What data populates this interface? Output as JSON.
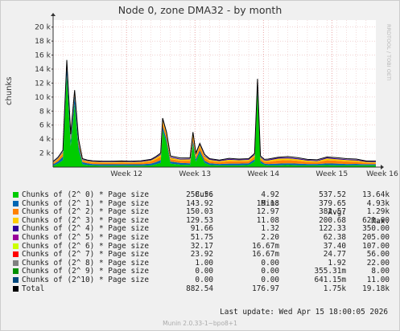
{
  "title": "Node 0, zone DMA32 - by month",
  "side_label": "RRDTOOL / TOBI OETIKER",
  "footer": "Munin 2.0.33-1~bpo8+1",
  "last_update": "Last update: Wed Apr 15 18:00:05 2026",
  "legend_headers": {
    "cur": "Cur:",
    "min": "Min:",
    "avg": "Avg:",
    "max": "Max:"
  },
  "legend": [
    {
      "name": "Chunks of (2^ 0) * Page size",
      "color": "#00cc00",
      "cur": "258.56",
      "min": "4.92",
      "avg": "537.52",
      "max": "13.64k"
    },
    {
      "name": "Chunks of (2^ 1) * Page size",
      "color": "#0066b3",
      "cur": "143.92",
      "min": "19.18",
      "avg": "379.65",
      "max": "4.93k"
    },
    {
      "name": "Chunks of (2^ 2) * Page size",
      "color": "#ff8000",
      "cur": "150.03",
      "min": "12.97",
      "avg": "382.57",
      "max": "1.29k"
    },
    {
      "name": "Chunks of (2^ 3) * Page size",
      "color": "#ffcc00",
      "cur": "129.53",
      "min": "11.08",
      "avg": "200.68",
      "max": "621.00"
    },
    {
      "name": "Chunks of (2^ 4) * Page size",
      "color": "#330099",
      "cur": "91.66",
      "min": "1.32",
      "avg": "122.33",
      "max": "350.00"
    },
    {
      "name": "Chunks of (2^ 5) * Page size",
      "color": "#990099",
      "cur": "51.75",
      "min": "2.20",
      "avg": "62.38",
      "max": "205.00"
    },
    {
      "name": "Chunks of (2^ 6) * Page size",
      "color": "#ccff00",
      "cur": "32.17",
      "min": "16.67m",
      "avg": "37.40",
      "max": "107.00"
    },
    {
      "name": "Chunks of (2^ 7) * Page size",
      "color": "#ff0000",
      "cur": "23.92",
      "min": "16.67m",
      "avg": "24.77",
      "max": "56.00"
    },
    {
      "name": "Chunks of (2^ 8) * Page size",
      "color": "#808080",
      "cur": "1.00",
      "min": "0.00",
      "avg": "1.92",
      "max": "22.00"
    },
    {
      "name": "Chunks of (2^ 9) * Page size",
      "color": "#008f00",
      "cur": "0.00",
      "min": "0.00",
      "avg": "355.31m",
      "max": "8.00"
    },
    {
      "name": "Chunks of (2^10) * Page size",
      "color": "#00487d",
      "cur": "0.00",
      "min": "0.00",
      "avg": "641.15m",
      "max": "11.00"
    },
    {
      "name": "Total",
      "color": "#000000",
      "cur": "882.54",
      "min": "176.97",
      "avg": "1.75k",
      "max": "19.18k"
    }
  ],
  "chart_data": {
    "type": "area",
    "ylabel": "chunks",
    "ylim": [
      0,
      21000
    ],
    "yticks": [
      2000,
      4000,
      6000,
      8000,
      10000,
      12000,
      14000,
      16000,
      18000,
      20000
    ],
    "ytick_labels": [
      "2 k",
      "4 k",
      "6 k",
      "8 k",
      "10 k",
      "12 k",
      "14 k",
      "16 k",
      "18 k",
      "20 k"
    ],
    "x_axis_unit": "days",
    "xlim": [
      0,
      33
    ],
    "xticks": [
      {
        "day": 7.5,
        "label": "Week 12"
      },
      {
        "day": 14.5,
        "label": "Week 13"
      },
      {
        "day": 21.5,
        "label": "Week 14"
      },
      {
        "day": 28.5,
        "label": "Week 15"
      },
      {
        "day": 35.5,
        "label": "Week 16"
      }
    ],
    "stacked": true,
    "series_colors": [
      "#00cc00",
      "#0066b3",
      "#ff8000",
      "#ffcc00",
      "#330099"
    ],
    "series": [
      {
        "name": "Chunks of (2^ 0) * Page size",
        "x": [
          0,
          0.5,
          1,
          1.4,
          1.8,
          2.2,
          2.6,
          3,
          3.5,
          4,
          5,
          6,
          7,
          8,
          9,
          10,
          10.5,
          11,
          11.2,
          11.6,
          12,
          13,
          14,
          14.3,
          14.6,
          15,
          15.5,
          16,
          17,
          18,
          19,
          20,
          20.6,
          20.9,
          21.2,
          21.6,
          22,
          23,
          24,
          25,
          26,
          27,
          28,
          29,
          30,
          31,
          32,
          33
        ],
        "values": [
          200,
          500,
          1000,
          13200,
          3000,
          9000,
          2500,
          400,
          300,
          250,
          200,
          200,
          220,
          200,
          200,
          250,
          400,
          600,
          5200,
          3500,
          500,
          350,
          300,
          3300,
          800,
          2000,
          600,
          300,
          250,
          250,
          250,
          300,
          800,
          11000,
          600,
          300,
          250,
          250,
          300,
          250,
          250,
          250,
          280,
          250,
          250,
          260,
          260,
          260
        ]
      },
      {
        "name": "Chunks of (2^ 1) * Page size",
        "x": [
          0,
          0.5,
          1,
          1.4,
          1.8,
          2.2,
          2.6,
          3,
          3.5,
          4,
          5,
          6,
          7,
          8,
          9,
          10,
          10.5,
          11,
          11.2,
          11.6,
          12,
          13,
          14,
          14.3,
          14.6,
          15,
          15.5,
          16,
          17,
          18,
          19,
          20,
          20.6,
          20.9,
          21.2,
          21.6,
          22,
          23,
          24,
          25,
          26,
          27,
          28,
          29,
          30,
          31,
          32,
          33
        ],
        "values": [
          200,
          300,
          500,
          1500,
          800,
          1200,
          700,
          300,
          250,
          200,
          200,
          200,
          200,
          200,
          200,
          250,
          300,
          400,
          600,
          500,
          300,
          250,
          250,
          500,
          350,
          400,
          300,
          250,
          200,
          250,
          250,
          250,
          300,
          600,
          300,
          200,
          200,
          250,
          250,
          250,
          200,
          200,
          250,
          250,
          200,
          200,
          150,
          150
        ]
      },
      {
        "name": "Chunks of (2^ 2) * Page size",
        "x": [
          0,
          0.5,
          1,
          1.4,
          1.8,
          2.2,
          2.6,
          3,
          3.5,
          4,
          5,
          6,
          7,
          8,
          9,
          10,
          10.5,
          11,
          11.2,
          11.6,
          12,
          13,
          14,
          14.3,
          14.6,
          15,
          15.5,
          16,
          17,
          18,
          19,
          20,
          20.6,
          20.9,
          21.2,
          21.6,
          22,
          23,
          24,
          25,
          26,
          27,
          28,
          29,
          30,
          31,
          32,
          33
        ],
        "values": [
          150,
          250,
          400,
          300,
          400,
          300,
          300,
          200,
          200,
          200,
          200,
          200,
          200,
          200,
          220,
          300,
          400,
          500,
          600,
          500,
          350,
          300,
          350,
          600,
          400,
          500,
          400,
          300,
          250,
          350,
          300,
          300,
          400,
          500,
          300,
          250,
          300,
          450,
          450,
          400,
          300,
          250,
          450,
          400,
          350,
          300,
          200,
          150
        ]
      },
      {
        "name": "Chunks of (2^ 3) * Page size",
        "x": [
          0,
          0.5,
          1,
          1.4,
          1.8,
          2.2,
          2.6,
          3,
          3.5,
          4,
          5,
          6,
          7,
          8,
          9,
          10,
          10.5,
          11,
          11.2,
          11.6,
          12,
          13,
          14,
          14.3,
          14.6,
          15,
          15.5,
          16,
          17,
          18,
          19,
          20,
          20.6,
          20.9,
          21.2,
          21.6,
          22,
          23,
          24,
          25,
          26,
          27,
          28,
          29,
          30,
          31,
          32,
          33
        ],
        "values": [
          100,
          150,
          200,
          150,
          200,
          150,
          150,
          120,
          120,
          120,
          120,
          120,
          120,
          120,
          130,
          150,
          200,
          250,
          300,
          250,
          200,
          180,
          200,
          300,
          220,
          250,
          220,
          180,
          150,
          200,
          180,
          180,
          220,
          250,
          180,
          150,
          200,
          250,
          250,
          220,
          180,
          150,
          250,
          220,
          200,
          180,
          140,
          130
        ]
      },
      {
        "name": "Chunks of (2^ 4) * Page size",
        "x": [
          0,
          0.5,
          1,
          1.4,
          1.8,
          2.2,
          2.6,
          3,
          3.5,
          4,
          5,
          6,
          7,
          8,
          9,
          10,
          10.5,
          11,
          11.2,
          11.6,
          12,
          13,
          14,
          14.3,
          14.6,
          15,
          15.5,
          16,
          17,
          18,
          19,
          20,
          20.6,
          20.9,
          21.2,
          21.6,
          22,
          23,
          24,
          25,
          26,
          27,
          28,
          29,
          30,
          31,
          32,
          33
        ],
        "values": [
          60,
          80,
          100,
          80,
          100,
          80,
          80,
          70,
          70,
          70,
          70,
          70,
          70,
          70,
          80,
          90,
          110,
          130,
          150,
          130,
          110,
          100,
          110,
          150,
          120,
          130,
          120,
          100,
          90,
          110,
          100,
          100,
          120,
          130,
          100,
          90,
          110,
          130,
          130,
          120,
          100,
          90,
          130,
          120,
          110,
          100,
          90,
          90
        ]
      }
    ],
    "total": {
      "name": "Total",
      "x": [
        0,
        0.5,
        1,
        1.4,
        1.8,
        2.2,
        2.6,
        3,
        3.5,
        4,
        5,
        6,
        7,
        8,
        9,
        10,
        10.5,
        11,
        11.2,
        11.6,
        12,
        13,
        14,
        14.3,
        14.6,
        15,
        15.5,
        16,
        17,
        18,
        19,
        20,
        20.6,
        20.9,
        21.2,
        21.6,
        22,
        23,
        24,
        25,
        26,
        27,
        28,
        29,
        30,
        31,
        32,
        33
      ],
      "values": [
        800,
        1400,
        2400,
        15300,
        4700,
        11000,
        4000,
        1200,
        1000,
        900,
        850,
        850,
        870,
        850,
        900,
        1100,
        1500,
        2000,
        7000,
        5000,
        1600,
        1300,
        1300,
        5000,
        2000,
        3400,
        1800,
        1200,
        1000,
        1250,
        1150,
        1200,
        1950,
        12600,
        1600,
        1100,
        1150,
        1400,
        1500,
        1350,
        1100,
        1050,
        1450,
        1350,
        1200,
        1150,
        880,
        880
      ]
    }
  }
}
